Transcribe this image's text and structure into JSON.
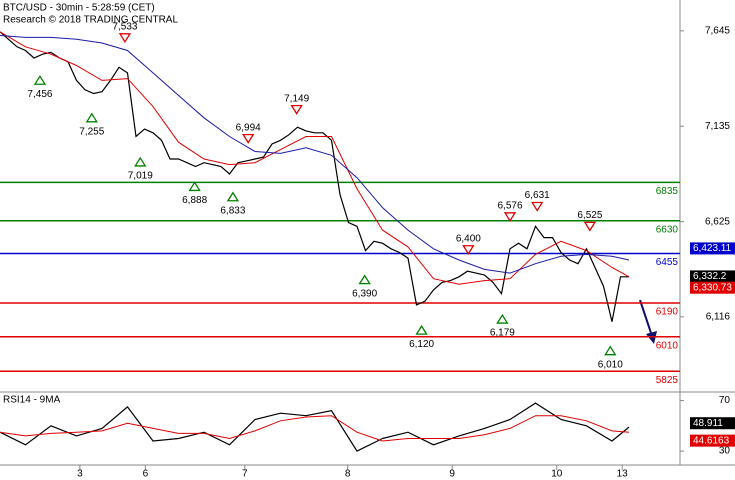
{
  "chart_data": [
    {
      "type": "line",
      "title": "BTC/USD - 30min - 5:28:59 (CET)",
      "subtitle": "Research © 2018 TRADING CENTRAL",
      "xlim": [
        0,
        80
      ],
      "ylim": [
        5725,
        7810
      ],
      "yticks": [
        {
          "value": 7645,
          "label": "7,645"
        },
        {
          "value": 7135,
          "label": "7,135"
        },
        {
          "value": 6625,
          "label": "6,625"
        },
        {
          "value": 6116,
          "label": "6,116"
        }
      ],
      "series": [
        {
          "color": "#000000",
          "x": [
            0,
            1,
            2,
            3,
            4,
            5,
            6,
            7,
            8,
            9,
            10,
            11,
            12,
            13,
            14,
            15,
            16,
            17,
            18,
            19,
            20,
            21,
            22,
            23,
            24,
            25,
            26,
            27,
            28,
            29,
            30,
            31,
            32,
            33,
            34,
            35,
            36,
            37,
            38,
            39,
            40,
            41,
            42,
            43,
            44,
            45,
            46,
            47,
            48,
            49,
            50,
            51,
            52,
            53,
            54,
            55,
            56,
            57,
            58,
            59,
            60,
            61,
            62,
            63,
            64,
            65,
            66,
            67,
            68,
            69,
            70,
            71,
            72,
            73,
            74
          ],
          "values": [
            7640,
            7600,
            7560,
            7540,
            7500,
            7520,
            7530,
            7500,
            7480,
            7380,
            7330,
            7310,
            7320,
            7380,
            7450,
            7420,
            7080,
            7120,
            7100,
            7060,
            6960,
            6960,
            6940,
            6920,
            6940,
            6930,
            6920,
            6880,
            6940,
            6950,
            6960,
            6970,
            7040,
            7060,
            7090,
            7130,
            7110,
            7100,
            7100,
            7060,
            6770,
            6620,
            6600,
            6470,
            6520,
            6510,
            6480,
            6460,
            6430,
            6180,
            6200,
            6260,
            6300,
            6310,
            6330,
            6360,
            6350,
            6340,
            6300,
            6240,
            6480,
            6510,
            6480,
            6600,
            6540,
            6540,
            6460,
            6420,
            6400,
            6480,
            6380,
            6280,
            6090,
            6330,
            6330
          ]
        },
        {
          "color": "#e00000",
          "x": [
            0,
            3,
            6,
            9,
            12,
            15,
            18,
            21,
            24,
            27,
            30,
            33,
            36,
            39,
            42,
            45,
            48,
            51,
            54,
            57,
            60,
            63,
            66,
            69,
            72,
            74
          ],
          "values": [
            7640,
            7560,
            7520,
            7460,
            7380,
            7390,
            7240,
            7050,
            6960,
            6930,
            6940,
            7010,
            7080,
            7080,
            6800,
            6580,
            6490,
            6320,
            6290,
            6310,
            6320,
            6450,
            6520,
            6470,
            6380,
            6330
          ]
        },
        {
          "color": "#1a1aa6",
          "x": [
            0,
            3,
            6,
            9,
            12,
            15,
            18,
            21,
            24,
            27,
            30,
            33,
            36,
            39,
            42,
            45,
            48,
            51,
            54,
            57,
            60,
            63,
            66,
            69,
            72,
            74
          ],
          "values": [
            7620,
            7610,
            7610,
            7600,
            7580,
            7540,
            7420,
            7300,
            7180,
            7080,
            7000,
            6990,
            7020,
            6980,
            6860,
            6700,
            6580,
            6480,
            6420,
            6370,
            6350,
            6400,
            6440,
            6450,
            6440,
            6420
          ]
        }
      ],
      "levels": [
        {
          "value": 6835,
          "color": "#008000"
        },
        {
          "value": 6630,
          "color": "#008000"
        },
        {
          "value": 6455,
          "color": "#0000cc"
        },
        {
          "value": 6190,
          "color": "#e00000"
        },
        {
          "value": 6010,
          "color": "#e00000"
        },
        {
          "value": 5825,
          "color": "#e00000"
        }
      ],
      "annotations": [
        {
          "x": 4.7,
          "value": 7456,
          "label": "7,456",
          "kind": "low"
        },
        {
          "x": 14.7,
          "value": 7533,
          "label": "7,533",
          "kind": "high"
        },
        {
          "x": 10.8,
          "value": 7255,
          "label": "7,255",
          "kind": "low"
        },
        {
          "x": 16.5,
          "value": 7019,
          "label": "7,019",
          "kind": "low"
        },
        {
          "x": 34.9,
          "value": 7149,
          "label": "7,149",
          "kind": "high"
        },
        {
          "x": 29.2,
          "value": 6994,
          "label": "6,994",
          "kind": "high"
        },
        {
          "x": 22.9,
          "value": 6888,
          "label": "6,888",
          "kind": "low"
        },
        {
          "x": 27.4,
          "value": 6833,
          "label": "6,833",
          "kind": "low"
        },
        {
          "x": 42.9,
          "value": 6390,
          "label": "6,390",
          "kind": "low"
        },
        {
          "x": 55.1,
          "value": 6400,
          "label": "6,400",
          "kind": "high"
        },
        {
          "x": 60,
          "value": 6576,
          "label": "6,576",
          "kind": "high"
        },
        {
          "x": 63.2,
          "value": 6631,
          "label": "6,631",
          "kind": "high"
        },
        {
          "x": 69.4,
          "value": 6525,
          "label": "6,525",
          "kind": "high"
        },
        {
          "x": 49.6,
          "value": 6120,
          "label": "6,120",
          "kind": "low"
        },
        {
          "x": 59.1,
          "value": 6179,
          "label": "6,179",
          "kind": "low"
        },
        {
          "x": 71.8,
          "value": 6010,
          "label": "6,010",
          "kind": "low"
        }
      ],
      "price_tags": [
        {
          "value": 6423.11,
          "label": "6,423.11",
          "color": "#0000cc"
        },
        {
          "value": 6332.2,
          "label": "6,332.2",
          "color": "#000000"
        },
        {
          "value": 6330.73,
          "label": "6,330.73",
          "color": "#e00000"
        }
      ]
    },
    {
      "type": "line",
      "title": "RSI14 - 9MA",
      "xlim": [
        0,
        80
      ],
      "ylim": [
        19,
        76
      ],
      "yticks": [
        70,
        30
      ],
      "xticks": [
        {
          "value": 9.4,
          "label": "3"
        },
        {
          "value": 17.1,
          "label": "6"
        },
        {
          "value": 28.8,
          "label": "7"
        },
        {
          "value": 40.9,
          "label": "8"
        },
        {
          "value": 53.2,
          "label": "9"
        },
        {
          "value": 65.5,
          "label": "10"
        },
        {
          "value": 73.2,
          "label": "13"
        }
      ],
      "series": [
        {
          "color": "#000000",
          "x": [
            0,
            3,
            6,
            9,
            12,
            15,
            18,
            21,
            24,
            27,
            30,
            33,
            36,
            39,
            42,
            45,
            48,
            51,
            54,
            57,
            60,
            63,
            66,
            69,
            72,
            74
          ],
          "values": [
            45,
            35,
            50,
            42,
            48,
            65,
            38,
            40,
            45,
            35,
            55,
            60,
            58,
            62,
            30,
            40,
            45,
            35,
            42,
            48,
            55,
            68,
            55,
            50,
            38,
            49
          ]
        },
        {
          "color": "#e00000",
          "x": [
            0,
            3,
            6,
            9,
            12,
            15,
            18,
            21,
            24,
            27,
            30,
            33,
            36,
            39,
            42,
            45,
            48,
            51,
            54,
            57,
            60,
            63,
            66,
            69,
            72,
            74
          ],
          "values": [
            45,
            42,
            44,
            45,
            46,
            52,
            48,
            44,
            44,
            40,
            46,
            54,
            57,
            58,
            45,
            38,
            40,
            40,
            40,
            43,
            48,
            58,
            58,
            54,
            46,
            45
          ]
        }
      ],
      "price_tags": [
        {
          "value": 48.911,
          "label": "48.911",
          "color": "#000000"
        },
        {
          "value": 44.6163,
          "label": "44.6163",
          "color": "#e00000"
        }
      ]
    }
  ]
}
